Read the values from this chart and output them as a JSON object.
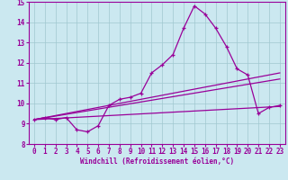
{
  "xlabel": "Windchill (Refroidissement éolien,°C)",
  "xlim": [
    -0.5,
    23.5
  ],
  "ylim": [
    8,
    15
  ],
  "xticks": [
    0,
    1,
    2,
    3,
    4,
    5,
    6,
    7,
    8,
    9,
    10,
    11,
    12,
    13,
    14,
    15,
    16,
    17,
    18,
    19,
    20,
    21,
    22,
    23
  ],
  "yticks": [
    8,
    9,
    10,
    11,
    12,
    13,
    14,
    15
  ],
  "bg_color": "#cbe8f0",
  "grid_color": "#a0c8d0",
  "line_color": "#990099",
  "line1_x": [
    0,
    1,
    2,
    3,
    4,
    5,
    6,
    7,
    8,
    9,
    10,
    11,
    12,
    13,
    14,
    15,
    16,
    17,
    18,
    19,
    20,
    21,
    22,
    23
  ],
  "line1_y": [
    9.2,
    9.3,
    9.2,
    9.3,
    8.7,
    8.6,
    8.9,
    9.9,
    10.2,
    10.3,
    10.5,
    11.5,
    11.9,
    12.4,
    13.7,
    14.8,
    14.4,
    13.7,
    12.8,
    11.7,
    11.4,
    9.5,
    9.8,
    9.9
  ],
  "line2_x": [
    0,
    23
  ],
  "line2_y": [
    9.2,
    11.5
  ],
  "line3_x": [
    0,
    23
  ],
  "line3_y": [
    9.2,
    11.2
  ],
  "line4_x": [
    0,
    23
  ],
  "line4_y": [
    9.2,
    9.85
  ]
}
